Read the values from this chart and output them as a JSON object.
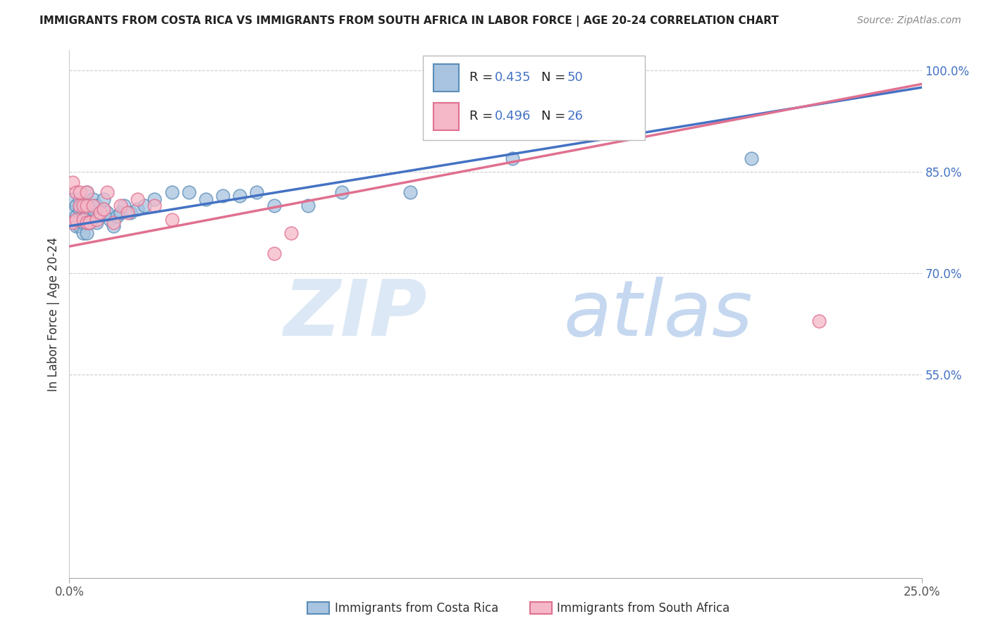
{
  "title": "IMMIGRANTS FROM COSTA RICA VS IMMIGRANTS FROM SOUTH AFRICA IN LABOR FORCE | AGE 20-24 CORRELATION CHART",
  "source": "Source: ZipAtlas.com",
  "ylabel": "In Labor Force | Age 20-24",
  "xmin": 0.0,
  "xmax": 0.25,
  "ymin": 0.25,
  "ymax": 1.03,
  "xtick_vals": [
    0.0,
    0.25
  ],
  "xtick_labels": [
    "0.0%",
    "25.0%"
  ],
  "ytick_vals": [
    0.55,
    0.7,
    0.85,
    1.0
  ],
  "ytick_labels": [
    "55.0%",
    "70.0%",
    "85.0%",
    "100.0%"
  ],
  "grid_lines": [
    0.55,
    0.7,
    0.85,
    1.0
  ],
  "legend_label1": "Immigrants from Costa Rica",
  "legend_label2": "Immigrants from South Africa",
  "R1": "0.435",
  "N1": "50",
  "R2": "0.496",
  "N2": "26",
  "color_blue_fill": "#a8c4e0",
  "color_blue_edge": "#5b8db8",
  "color_pink_fill": "#f5b8c8",
  "color_pink_edge": "#e07090",
  "color_blue_line": "#4472c4",
  "color_pink_line": "#e07090",
  "color_right_labels": "#4472c4",
  "watermark_zip_color": "#dce8f5",
  "watermark_atlas_color": "#c5d8f0",
  "blue_x": [
    0.001,
    0.001,
    0.001,
    0.002,
    0.002,
    0.002,
    0.003,
    0.003,
    0.003,
    0.003,
    0.004,
    0.004,
    0.004,
    0.004,
    0.005,
    0.005,
    0.005,
    0.005,
    0.006,
    0.006,
    0.007,
    0.007,
    0.007,
    0.008,
    0.008,
    0.009,
    0.01,
    0.01,
    0.011,
    0.012,
    0.013,
    0.014,
    0.015,
    0.016,
    0.018,
    0.02,
    0.022,
    0.025,
    0.03,
    0.035,
    0.04,
    0.045,
    0.05,
    0.055,
    0.06,
    0.07,
    0.08,
    0.1,
    0.13,
    0.2
  ],
  "blue_y": [
    0.775,
    0.79,
    0.81,
    0.77,
    0.785,
    0.8,
    0.77,
    0.78,
    0.795,
    0.81,
    0.76,
    0.775,
    0.79,
    0.805,
    0.76,
    0.775,
    0.79,
    0.82,
    0.775,
    0.8,
    0.78,
    0.795,
    0.81,
    0.775,
    0.8,
    0.79,
    0.795,
    0.81,
    0.79,
    0.78,
    0.77,
    0.785,
    0.79,
    0.8,
    0.79,
    0.795,
    0.8,
    0.81,
    0.82,
    0.82,
    0.81,
    0.815,
    0.815,
    0.82,
    0.8,
    0.8,
    0.82,
    0.82,
    0.87,
    0.87
  ],
  "pink_x": [
    0.001,
    0.001,
    0.002,
    0.002,
    0.003,
    0.003,
    0.004,
    0.004,
    0.005,
    0.005,
    0.005,
    0.006,
    0.007,
    0.008,
    0.009,
    0.01,
    0.011,
    0.013,
    0.015,
    0.017,
    0.02,
    0.025,
    0.03,
    0.06,
    0.065,
    0.22
  ],
  "pink_y": [
    0.835,
    0.775,
    0.82,
    0.78,
    0.82,
    0.8,
    0.8,
    0.78,
    0.775,
    0.8,
    0.82,
    0.775,
    0.8,
    0.78,
    0.79,
    0.795,
    0.82,
    0.775,
    0.8,
    0.79,
    0.81,
    0.8,
    0.78,
    0.73,
    0.76,
    0.63
  ],
  "blue_line_x": [
    0.0,
    0.25
  ],
  "blue_line_y": [
    0.77,
    0.975
  ],
  "pink_line_x": [
    0.0,
    0.25
  ],
  "pink_line_y": [
    0.74,
    0.98
  ]
}
